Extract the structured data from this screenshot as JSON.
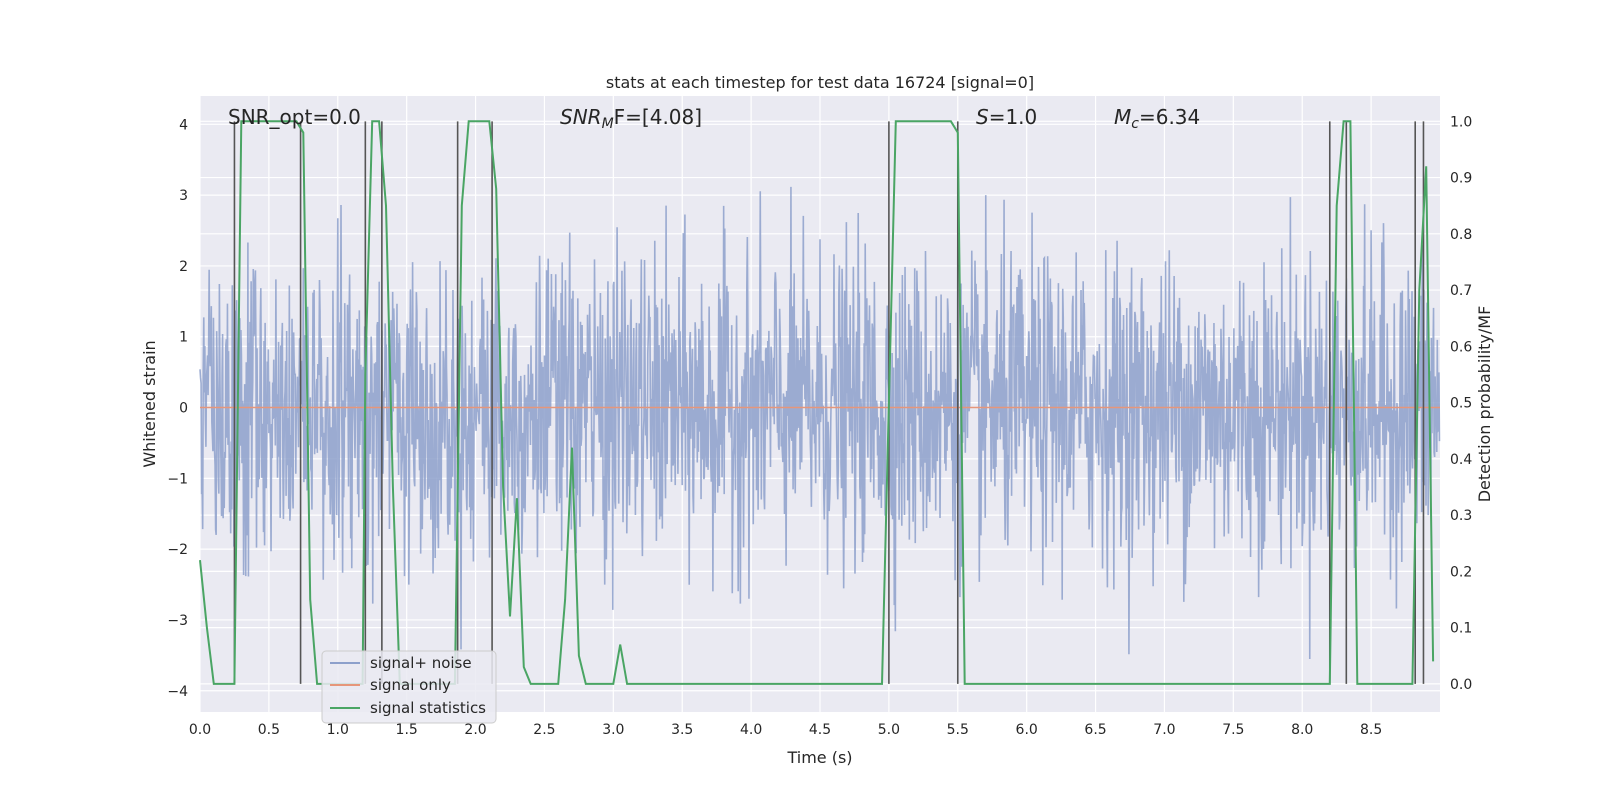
{
  "chart_data": {
    "type": "line",
    "title": "stats at each timestep for test data 16724 [signal=0]",
    "xlabel": "Time (s)",
    "ylabel_left": "Whitened strain",
    "ylabel_right": "Detection probability/MF",
    "xlim": [
      0.0,
      9.0
    ],
    "ylim_left": [
      -4.3,
      4.4
    ],
    "ylim_right": [
      -0.05,
      1.045
    ],
    "x_ticks": [
      "0.0",
      "0.5",
      "1.0",
      "1.5",
      "2.0",
      "2.5",
      "3.0",
      "3.5",
      "4.0",
      "4.5",
      "5.0",
      "5.5",
      "6.0",
      "6.5",
      "7.0",
      "7.5",
      "8.0",
      "8.5"
    ],
    "y_ticks_left": [
      "4",
      "3",
      "2",
      "1",
      "0",
      "−1",
      "−2",
      "−3",
      "−4"
    ],
    "y_ticks_right": [
      "1.0",
      "0.9",
      "0.8",
      "0.7",
      "0.6",
      "0.5",
      "0.4",
      "0.3",
      "0.2",
      "0.1",
      "0.0"
    ],
    "annotations": {
      "snr_opt": "SNR_opt=0.0",
      "snr_mf_sym": "SNR",
      "snr_mf_sub": "M",
      "snr_mf_rest": "F=[4.08]",
      "s_sym": "S",
      "s_rest": "=1.0",
      "mc_sym": "M",
      "mc_sub": "c",
      "mc_rest": "=6.34"
    },
    "legend": [
      "signal+ noise",
      "signal only",
      "signal statistics"
    ],
    "colors": {
      "noise": "#8da0cb",
      "signal": "#e6967a",
      "stats": "#4aa564",
      "vlines": "#555555",
      "background": "#eaeaf2",
      "grid": "#ffffff"
    },
    "noise": {
      "sample_rate_hz": 256,
      "std": 1.05,
      "spike_max": 4.0,
      "spike_min": -4.0
    },
    "series": [
      {
        "name": "signal statistics",
        "x": [
          0.0,
          0.05,
          0.1,
          0.25,
          0.3,
          0.7,
          0.75,
          0.8,
          0.85,
          1.18,
          1.2,
          1.25,
          1.3,
          1.35,
          1.4,
          1.45,
          1.85,
          1.9,
          1.95,
          2.1,
          2.15,
          2.2,
          2.25,
          2.3,
          2.35,
          2.4,
          2.45,
          2.6,
          2.65,
          2.7,
          2.75,
          2.8,
          2.85,
          3.0,
          3.05,
          3.1,
          3.15,
          4.95,
          5.0,
          5.05,
          5.45,
          5.5,
          5.55,
          8.15,
          8.2,
          8.25,
          8.3,
          8.35,
          8.4,
          8.55,
          8.6,
          8.8,
          8.85,
          8.9,
          8.95
        ],
        "values": [
          0.22,
          0.1,
          0.0,
          0.0,
          1.0,
          1.0,
          0.98,
          0.15,
          0.0,
          0.0,
          0.55,
          1.0,
          1.0,
          0.85,
          0.35,
          0.0,
          0.0,
          0.85,
          1.0,
          1.0,
          0.88,
          0.35,
          0.12,
          0.33,
          0.03,
          0.0,
          0.0,
          0.0,
          0.15,
          0.42,
          0.05,
          0.0,
          0.0,
          0.0,
          0.07,
          0.0,
          0.0,
          0.0,
          0.5,
          1.0,
          1.0,
          0.98,
          0.0,
          0.0,
          0.0,
          0.85,
          1.0,
          1.0,
          0.0,
          0.0,
          0.0,
          0.0,
          0.7,
          0.92,
          0.04
        ]
      },
      {
        "name": "signal only",
        "x": [
          0.0,
          9.0
        ],
        "values": [
          0.0,
          0.0
        ]
      }
    ],
    "vlines": [
      0.25,
      0.73,
      1.2,
      1.32,
      1.87,
      2.12,
      5.0,
      5.5,
      8.2,
      8.32,
      8.82,
      8.88
    ]
  }
}
